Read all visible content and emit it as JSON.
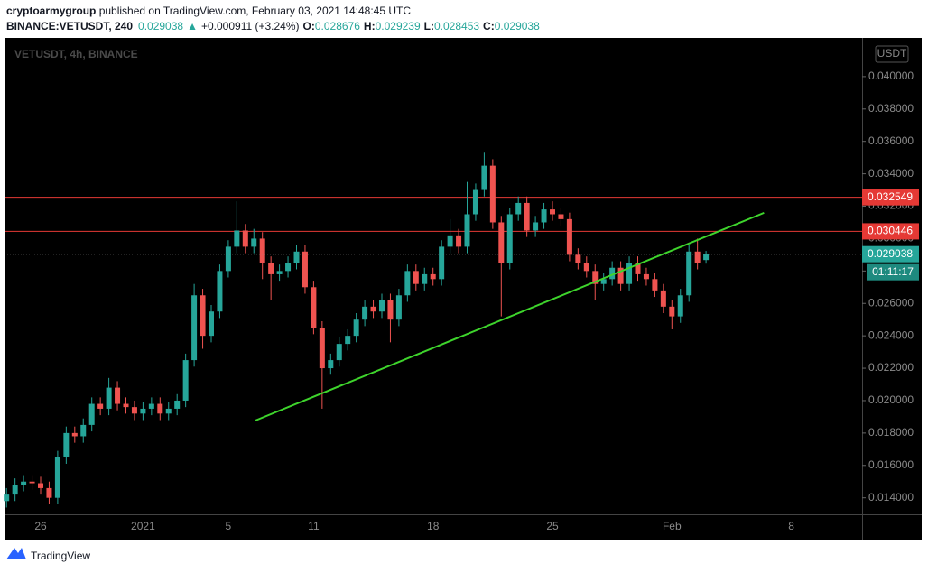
{
  "header": {
    "author": "cryptoarmygroup",
    "published": " published on TradingView.com, February 03, 2021 14:48:45 UTC",
    "symbol": "BINANCE:VETUSDT, 240",
    "up_arrow": "▲",
    "change": "+0.000911 (+3.24%)",
    "o_label": "O:",
    "h_label": "H:",
    "l_label": "L:",
    "c_label": "C:"
  },
  "footer": {
    "brand": "TradingView"
  },
  "chart_data": {
    "type": "candlestick",
    "watermark": "VETUSDT, 4h, BINANCE",
    "currency": "USDT",
    "countdown": "01:11:17",
    "up_color": "#26a69a",
    "down_color": "#ef5350",
    "categories": [
      null,
      null,
      null,
      null,
      "26",
      null,
      null,
      null,
      null,
      null,
      null,
      null,
      null,
      null,
      null,
      null,
      "2021",
      null,
      null,
      null,
      null,
      null,
      null,
      null,
      null,
      null,
      "5",
      null,
      null,
      null,
      null,
      null,
      null,
      null,
      null,
      null,
      "11",
      null,
      null,
      null,
      null,
      null,
      null,
      null,
      null,
      null,
      null,
      null,
      null,
      null,
      "18",
      null,
      null,
      null,
      null,
      null,
      null,
      null,
      null,
      null,
      null,
      null,
      null,
      null,
      "25",
      null,
      null,
      null,
      null,
      null,
      null,
      null,
      null,
      null,
      null,
      null,
      null,
      null,
      "Feb",
      null,
      null,
      null,
      null,
      null,
      null,
      null,
      null,
      null,
      null,
      null,
      null,
      null,
      "8",
      null,
      null,
      null,
      null,
      null,
      null,
      null
    ],
    "open": [
      0.0138,
      0.0142,
      0.0148,
      0.015,
      0.0149,
      0.0146,
      0.014,
      0.0165,
      0.018,
      0.0178,
      0.0185,
      0.0198,
      0.0195,
      0.0208,
      0.0198,
      0.0196,
      0.0192,
      0.0195,
      0.0198,
      0.0192,
      0.0195,
      0.02,
      0.0225,
      0.0265,
      0.024,
      0.0255,
      0.028,
      0.0295,
      0.0305,
      0.0295,
      0.03,
      0.0285,
      0.0278,
      0.028,
      0.0285,
      0.0292,
      0.027,
      0.0245,
      0.022,
      0.0225,
      0.0235,
      0.024,
      0.025,
      0.0258,
      0.0255,
      0.0262,
      0.025,
      0.0265,
      0.028,
      0.0272,
      0.0278,
      0.0275,
      0.0295,
      0.0302,
      0.0295,
      0.0315,
      0.033,
      0.0345,
      0.031,
      0.0285,
      0.0315,
      0.0322,
      0.0305,
      0.031,
      0.0318,
      0.0315,
      0.0312,
      0.029,
      0.0285,
      0.028,
      0.0272,
      0.0275,
      0.0282,
      0.0272,
      0.0285,
      0.0278,
      0.0275,
      0.0268,
      0.0258,
      0.0252,
      0.0265,
      0.0292,
      0.028676,
      null,
      null,
      null,
      null,
      null,
      null,
      null,
      null,
      null,
      null,
      null,
      null,
      null,
      null,
      null,
      null,
      null
    ],
    "high": [
      0.0146,
      0.0152,
      0.0154,
      0.0154,
      0.0153,
      0.015,
      0.0169,
      0.0184,
      0.0184,
      0.0189,
      0.0202,
      0.0202,
      0.0214,
      0.0212,
      0.0202,
      0.02,
      0.0199,
      0.0202,
      0.0202,
      0.0199,
      0.0204,
      0.0229,
      0.0272,
      0.0269,
      0.0259,
      0.0284,
      0.0299,
      0.0323,
      0.0309,
      0.0306,
      0.0304,
      0.0289,
      0.0284,
      0.0289,
      0.0296,
      0.0296,
      0.0274,
      0.0249,
      0.0229,
      0.0239,
      0.0244,
      0.0254,
      0.0262,
      0.0262,
      0.0266,
      0.0266,
      0.0269,
      0.0284,
      0.0284,
      0.0282,
      0.0282,
      0.0299,
      0.0312,
      0.0306,
      0.0335,
      0.0334,
      0.0353,
      0.0349,
      0.0314,
      0.0319,
      0.0326,
      0.0326,
      0.0314,
      0.0322,
      0.0323,
      0.0319,
      0.0316,
      0.0294,
      0.0289,
      0.0284,
      0.0279,
      0.0286,
      0.0286,
      0.0289,
      0.0289,
      0.0282,
      0.0279,
      0.0272,
      0.0262,
      0.0269,
      0.0296,
      0.03,
      0.029239,
      null,
      null,
      null,
      null,
      null,
      null,
      null,
      null,
      null,
      null,
      null,
      null,
      null,
      null,
      null,
      null,
      null
    ],
    "low": [
      0.0134,
      0.0138,
      0.0144,
      0.0145,
      0.0142,
      0.0136,
      0.0136,
      0.0161,
      0.0174,
      0.0174,
      0.0181,
      0.0191,
      0.0191,
      0.0194,
      0.0192,
      0.0188,
      0.0188,
      0.0191,
      0.0188,
      0.0188,
      0.0191,
      0.0196,
      0.0221,
      0.0232,
      0.0236,
      0.0251,
      0.0276,
      0.0291,
      0.0291,
      0.0291,
      0.0275,
      0.0262,
      0.0274,
      0.0276,
      0.0281,
      0.0266,
      0.0241,
      0.0195,
      0.0216,
      0.0221,
      0.0231,
      0.0236,
      0.0246,
      0.0251,
      0.0251,
      0.0236,
      0.0246,
      0.0261,
      0.0268,
      0.0268,
      0.0271,
      0.0271,
      0.0291,
      0.0291,
      0.0291,
      0.0311,
      0.0326,
      0.0306,
      0.0252,
      0.0281,
      0.0311,
      0.0301,
      0.0301,
      0.0306,
      0.0311,
      0.0308,
      0.0286,
      0.0281,
      0.0276,
      0.0262,
      0.0268,
      0.0271,
      0.0268,
      0.0268,
      0.0274,
      0.0271,
      0.0264,
      0.0254,
      0.0244,
      0.0248,
      0.0261,
      0.0281,
      0.028453,
      null,
      null,
      null,
      null,
      null,
      null,
      null,
      null,
      null,
      null,
      null,
      null,
      null,
      null,
      null,
      null,
      null
    ],
    "close": [
      0.0142,
      0.0148,
      0.015,
      0.0149,
      0.0146,
      0.014,
      0.0165,
      0.018,
      0.0178,
      0.0185,
      0.0198,
      0.0195,
      0.0208,
      0.0198,
      0.0196,
      0.0192,
      0.0195,
      0.0198,
      0.0192,
      0.0195,
      0.02,
      0.0225,
      0.0265,
      0.024,
      0.0255,
      0.028,
      0.0295,
      0.0305,
      0.0295,
      0.03,
      0.0285,
      0.0278,
      0.028,
      0.0285,
      0.0292,
      0.027,
      0.0245,
      0.022,
      0.0225,
      0.0235,
      0.024,
      0.025,
      0.0258,
      0.0255,
      0.0262,
      0.025,
      0.0265,
      0.028,
      0.0272,
      0.0278,
      0.0275,
      0.0295,
      0.0302,
      0.0295,
      0.0315,
      0.033,
      0.0345,
      0.031,
      0.0285,
      0.0315,
      0.0322,
      0.0305,
      0.031,
      0.0318,
      0.0315,
      0.0312,
      0.029,
      0.0285,
      0.028,
      0.0272,
      0.0275,
      0.0282,
      0.0272,
      0.0285,
      0.0278,
      0.0275,
      0.0268,
      0.0258,
      0.0252,
      0.0265,
      0.0292,
      0.0285,
      0.029038,
      null,
      null,
      null,
      null,
      null,
      null,
      null,
      null,
      null,
      null,
      null,
      null,
      null,
      null,
      null,
      null,
      null
    ],
    "levels": [
      {
        "value": 0.032549,
        "color": "#e53935"
      },
      {
        "value": 0.030446,
        "color": "#e53935"
      }
    ],
    "trendline": {
      "x": [
        29.2,
        88.8
      ],
      "y": [
        0.01878,
        0.03159
      ],
      "color": "#3ed42c"
    },
    "ylim": [
      0.01298,
      0.0425
    ],
    "yticks": [
      {
        "value": 0.014,
        "label": "0.014000"
      },
      {
        "value": 0.016,
        "label": "0.016000"
      },
      {
        "value": 0.018,
        "label": "0.018000"
      },
      {
        "value": 0.02,
        "label": "0.020000"
      },
      {
        "value": 0.022,
        "label": "0.022000"
      },
      {
        "value": 0.024,
        "label": "0.024000"
      },
      {
        "value": 0.026,
        "label": "0.026000"
      },
      {
        "value": 0.028,
        "label": "0.028000"
      },
      {
        "value": 0.03,
        "label": "0.030000"
      },
      {
        "value": 0.032,
        "label": "0.032000"
      },
      {
        "value": 0.034,
        "label": "0.034000"
      },
      {
        "value": 0.036,
        "label": "0.036000"
      },
      {
        "value": 0.038,
        "label": "0.038000"
      },
      {
        "value": 0.04,
        "label": "0.040000"
      }
    ],
    "grid": false
  }
}
